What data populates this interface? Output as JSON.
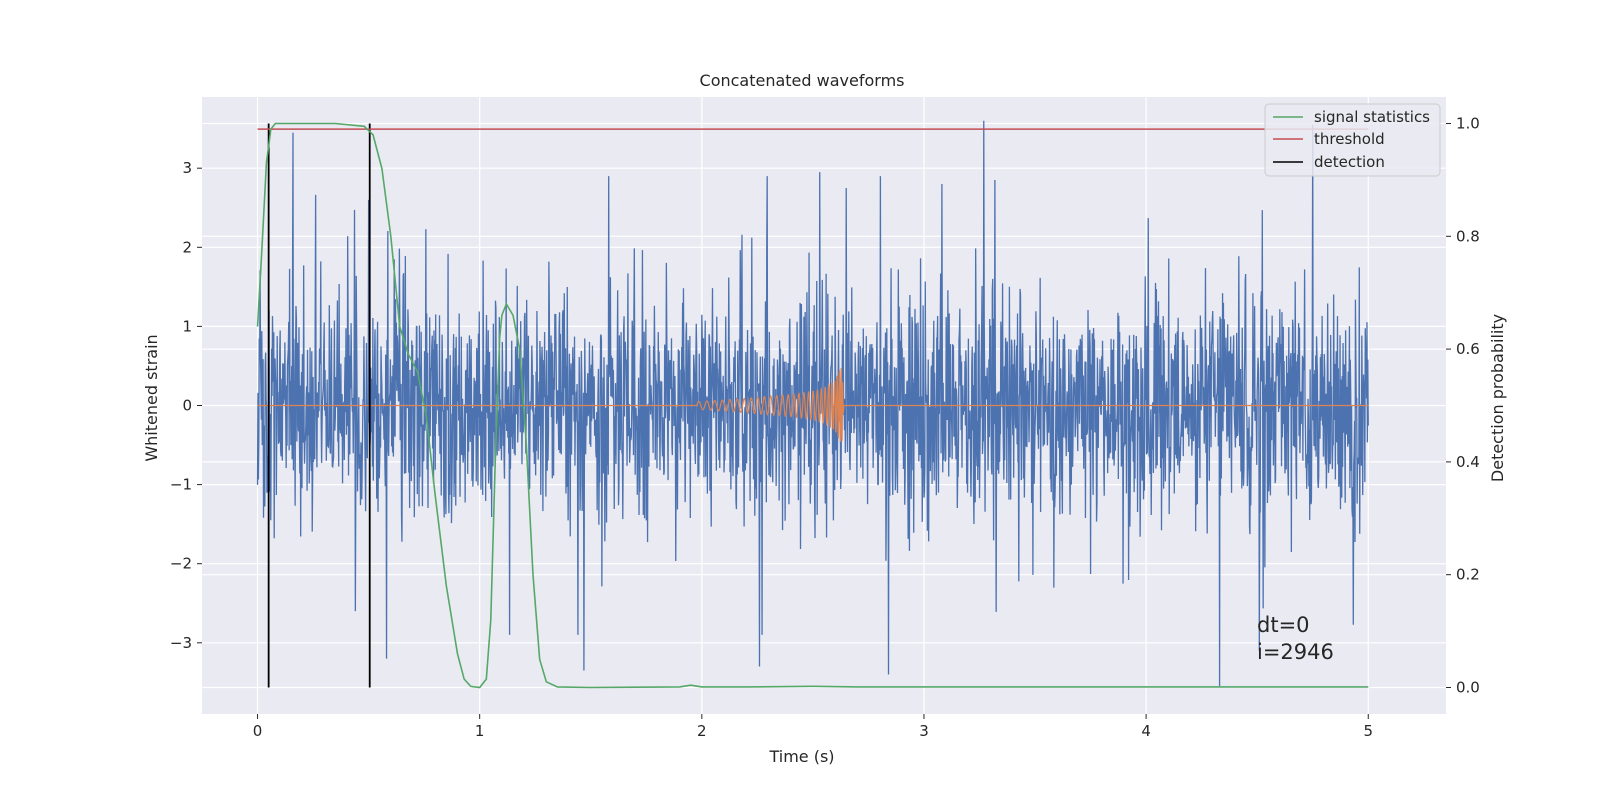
{
  "chart_data": {
    "type": "line",
    "title": "Concatenated waveforms",
    "xlabel": "Time (s)",
    "ylabel": "Whitened strain",
    "y2label": "Detection probability",
    "xlim": [
      -0.25,
      5.35
    ],
    "ylim": [
      -3.9,
      3.9
    ],
    "y2lim": [
      -0.047,
      1.047
    ],
    "x_ticks": [
      0,
      1,
      2,
      3,
      4,
      5
    ],
    "x_tick_labels": [
      "0",
      "1",
      "2",
      "3",
      "4",
      "5"
    ],
    "y_ticks": [
      -3,
      -2,
      -1,
      0,
      1,
      2,
      3
    ],
    "y_tick_labels": [
      "−3",
      "−2",
      "−1",
      "0",
      "1",
      "2",
      "3"
    ],
    "y2_ticks": [
      0.0,
      0.2,
      0.4,
      0.6,
      0.8,
      1.0
    ],
    "y2_tick_labels": [
      "0.0",
      "0.2",
      "0.4",
      "0.6",
      "0.8",
      "1.0"
    ],
    "grid": true,
    "legend_position": "top-right",
    "annotations": [
      "dt=0",
      "i=2946"
    ],
    "colors": {
      "background": "#eaeaf2",
      "grid": "#ffffff",
      "strain": "#4c72b0",
      "template": "#dd8452",
      "signal": "#55a868",
      "threshold": "#c44e52",
      "detection": "#000000"
    },
    "series": [
      {
        "name": "",
        "role": "whitened-strain-noise",
        "axis": "left",
        "x_range": [
          0,
          5
        ],
        "typical_envelope": [
          -0.75,
          0.75
        ],
        "notable_peaks": [
          {
            "x": 0.16,
            "y": 3.45
          },
          {
            "x": 3.27,
            "y": 3.6
          },
          {
            "x": 4.75,
            "y": 3.55
          },
          {
            "x": 1.58,
            "y": 2.9
          },
          {
            "x": 2.53,
            "y": 2.95
          },
          {
            "x": 3.32,
            "y": 2.85
          },
          {
            "x": 2.65,
            "y": 2.75
          },
          {
            "x": 3.08,
            "y": 2.8
          },
          {
            "x": 0.5,
            "y": 2.6
          }
        ],
        "notable_troughs": [
          {
            "x": 4.33,
            "y": -3.55
          },
          {
            "x": 1.47,
            "y": -3.35
          },
          {
            "x": 2.84,
            "y": -3.4
          },
          {
            "x": 0.58,
            "y": -3.2
          },
          {
            "x": 0.44,
            "y": -2.6
          },
          {
            "x": 2.26,
            "y": -3.3
          },
          {
            "x": 4.51,
            "y": -3.1
          }
        ]
      },
      {
        "name": "",
        "role": "injected-chirp",
        "axis": "left",
        "x": [
          0,
          1.98,
          2.1,
          2.2,
          2.3,
          2.4,
          2.5,
          2.55,
          2.6,
          2.63,
          2.64,
          5.0
        ],
        "amplitude": [
          0,
          0.05,
          0.07,
          0.09,
          0.12,
          0.14,
          0.18,
          0.22,
          0.32,
          0.5,
          0,
          0
        ]
      },
      {
        "name": "signal statistics",
        "axis": "right",
        "x": [
          0.0,
          0.02,
          0.04,
          0.06,
          0.08,
          0.1,
          0.2,
          0.35,
          0.48,
          0.52,
          0.56,
          0.6,
          0.64,
          0.68,
          0.72,
          0.76,
          0.8,
          0.85,
          0.9,
          0.93,
          0.96,
          1.0,
          1.03,
          1.05,
          1.07,
          1.09,
          1.1,
          1.12,
          1.15,
          1.18,
          1.21,
          1.24,
          1.27,
          1.3,
          1.35,
          1.5,
          1.9,
          1.95,
          2.0,
          2.2,
          2.5,
          2.7,
          3.0,
          4.0,
          5.0
        ],
        "y": [
          0.64,
          0.78,
          0.93,
          0.99,
          1.0,
          1.0,
          1.0,
          1.0,
          0.995,
          0.98,
          0.92,
          0.8,
          0.64,
          0.59,
          0.56,
          0.48,
          0.34,
          0.18,
          0.06,
          0.015,
          0.002,
          0.0,
          0.015,
          0.12,
          0.4,
          0.62,
          0.66,
          0.68,
          0.66,
          0.6,
          0.43,
          0.2,
          0.05,
          0.01,
          0.001,
          0.0,
          0.001,
          0.004,
          0.001,
          0.001,
          0.002,
          0.001,
          0.001,
          0.001,
          0.001
        ]
      },
      {
        "name": "threshold",
        "axis": "right",
        "x": [
          0,
          5
        ],
        "y": [
          0.99,
          0.99
        ]
      },
      {
        "name": "detection",
        "axis": "right",
        "segments": [
          {
            "x": 0.05,
            "y": [
              0.0,
              1.0
            ]
          },
          {
            "x": 0.505,
            "y": [
              0.0,
              1.0
            ]
          }
        ]
      }
    ]
  }
}
